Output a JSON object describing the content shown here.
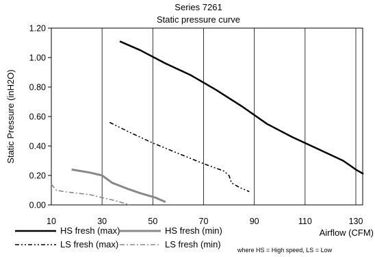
{
  "chart_data": {
    "type": "line",
    "title": "Series 7261",
    "subtitle": "Static pressure curve",
    "xlabel": "Airflow (CFM)",
    "ylabel": "Static Pressure (inH2O)",
    "xlim": [
      10,
      135
    ],
    "ylim": [
      0,
      1.2
    ],
    "x_ticks": [
      "10",
      "30",
      "50",
      "70",
      "90",
      "110",
      "130"
    ],
    "y_ticks": [
      "0.00",
      "0.20",
      "0.40",
      "0.60",
      "0.80",
      "1.00",
      "1.20"
    ],
    "grid": "vertical",
    "legend_position": "bottom",
    "note": "where HS = High speed, LS = Low",
    "series": [
      {
        "name": "HS fresh (max)",
        "color": "#000000",
        "style": "solid",
        "points": [
          [
            37,
            1.11
          ],
          [
            45,
            1.05
          ],
          [
            55,
            0.96
          ],
          [
            65,
            0.88
          ],
          [
            75,
            0.78
          ],
          [
            85,
            0.67
          ],
          [
            95,
            0.55
          ],
          [
            105,
            0.46
          ],
          [
            115,
            0.38
          ],
          [
            125,
            0.3
          ],
          [
            130,
            0.24
          ],
          [
            133,
            0.21
          ]
        ]
      },
      {
        "name": "HS fresh (min)",
        "color": "#888888",
        "style": "solid",
        "points": [
          [
            18,
            0.24
          ],
          [
            25,
            0.22
          ],
          [
            30,
            0.2
          ],
          [
            34,
            0.15
          ],
          [
            40,
            0.11
          ],
          [
            45,
            0.08
          ],
          [
            51,
            0.05
          ],
          [
            55,
            0.02
          ]
        ]
      },
      {
        "name": "LS fresh (max)",
        "color": "#000000",
        "style": "dashdotdot",
        "points": [
          [
            33,
            0.56
          ],
          [
            40,
            0.5
          ],
          [
            50,
            0.42
          ],
          [
            60,
            0.35
          ],
          [
            70,
            0.28
          ],
          [
            78,
            0.23
          ],
          [
            80,
            0.2
          ],
          [
            81,
            0.15
          ],
          [
            84,
            0.12
          ],
          [
            88,
            0.09
          ]
        ]
      },
      {
        "name": "LS fresh (min)",
        "color": "#888888",
        "style": "dashdot",
        "points": [
          [
            10,
            0.14
          ],
          [
            12,
            0.1
          ],
          [
            15,
            0.09
          ],
          [
            20,
            0.08
          ],
          [
            25,
            0.07
          ],
          [
            30,
            0.05
          ],
          [
            35,
            0.03
          ],
          [
            41,
            0.0
          ]
        ]
      }
    ]
  }
}
